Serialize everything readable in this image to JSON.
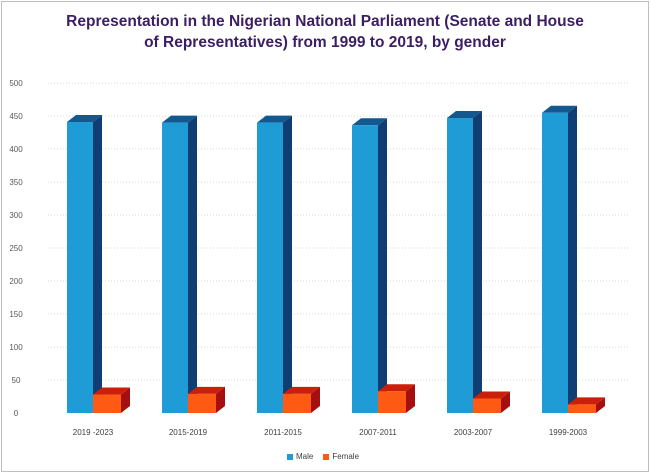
{
  "chart_data": {
    "type": "bar",
    "title_line1": "Representation in the Nigerian National Parliament (Senate and House",
    "title_line2": "of Representatives) from 1999 to 2019, by gender",
    "categories": [
      "2019 -2023",
      "2015-2019",
      "2011-2015",
      "2007-2011",
      "2003-2007",
      "1999-2003"
    ],
    "series": [
      {
        "name": "Male",
        "values": [
          441,
          440,
          440,
          436,
          447,
          455
        ]
      },
      {
        "name": "Female",
        "values": [
          28,
          29,
          29,
          33,
          22,
          13
        ]
      }
    ],
    "yticks": [
      0,
      50,
      100,
      150,
      200,
      250,
      300,
      350,
      400,
      450,
      500
    ],
    "ylim": [
      0,
      500
    ],
    "xlabel": "",
    "ylabel": "",
    "legend_position": "bottom",
    "colors": {
      "Male": {
        "front": "#1f9bd5",
        "side": "#0f3d74",
        "top": "#13588f"
      },
      "Female": {
        "front": "#ff5a14",
        "side": "#a50f0f",
        "top": "#c8200a"
      }
    }
  }
}
